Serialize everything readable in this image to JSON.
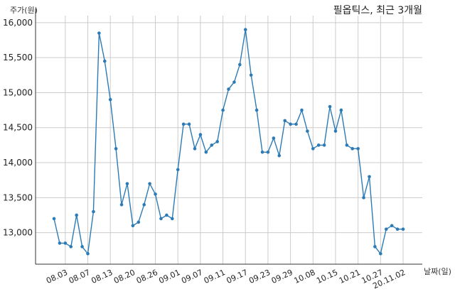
{
  "chart_data": {
    "type": "line",
    "title": "필옵틱스, 최근 3개월",
    "ylabel": "주가(원)",
    "xlabel": "날짜(일)",
    "ylim": [
      12550,
      16100
    ],
    "yticks": [
      13000,
      13500,
      14000,
      14500,
      15000,
      15500,
      16000
    ],
    "ytick_labels": [
      "13,000",
      "13,500",
      "14,000",
      "14,500",
      "15,000",
      "15,500",
      "16,000"
    ],
    "grid": true,
    "xticks": [
      {
        "index": 2,
        "label": "08.03"
      },
      {
        "index": 6,
        "label": "08.07"
      },
      {
        "index": 10,
        "label": "08.13"
      },
      {
        "index": 14,
        "label": "08.20"
      },
      {
        "index": 18,
        "label": "08.26"
      },
      {
        "index": 22,
        "label": "09.01"
      },
      {
        "index": 26,
        "label": "09.07"
      },
      {
        "index": 30,
        "label": "09.11"
      },
      {
        "index": 34,
        "label": "09.17"
      },
      {
        "index": 38,
        "label": "09.23"
      },
      {
        "index": 42,
        "label": "09.29"
      },
      {
        "index": 46,
        "label": "10.08"
      },
      {
        "index": 50,
        "label": "10.15"
      },
      {
        "index": 54,
        "label": "10.21"
      },
      {
        "index": 58,
        "label": "10.27"
      },
      {
        "index": 62,
        "label": "20.11.02"
      }
    ],
    "series": [
      {
        "color": "#2c7bb6",
        "values": [
          13200,
          12850,
          12850,
          12800,
          13250,
          12800,
          12700,
          13300,
          15850,
          15450,
          14900,
          14200,
          13400,
          13700,
          13100,
          13150,
          13400,
          13700,
          13550,
          13200,
          13250,
          13200,
          13900,
          14550,
          14550,
          14200,
          14400,
          14150,
          14250,
          14300,
          14750,
          15050,
          15150,
          15400,
          15900,
          15250,
          14750,
          14150,
          14150,
          14350,
          14100,
          14600,
          14550,
          14550,
          14750,
          14450,
          14200,
          14250,
          14250,
          14800,
          14450,
          14750,
          14250,
          14200,
          14200,
          13500,
          13800,
          12800,
          12700,
          13050,
          13100,
          13050,
          13050
        ]
      }
    ]
  }
}
